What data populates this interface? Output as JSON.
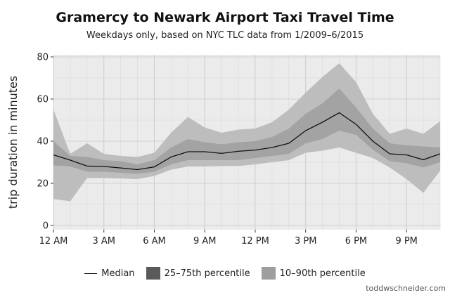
{
  "title": "Gramercy to Newark Airport Taxi Travel Time",
  "subtitle": "Weekdays only, based on NYC TLC data from 1/2009–6/2015",
  "credit": "toddwschneider.com",
  "colors": {
    "panel_bg": "#ebebeb",
    "grid": "#d9d9d9",
    "band_10_90": "#bdbdbd",
    "band_25_75": "#a3a3a3",
    "median_line": "#111111",
    "legend_25_75": "#5a5a5a",
    "legend_10_90": "#9e9e9e"
  },
  "legend": {
    "median": "Median",
    "p25_75": "25–75th percentile",
    "p10_90": "10–90th percentile"
  },
  "chart_data": {
    "type": "area",
    "title": "Gramercy to Newark Airport Taxi Travel Time",
    "subtitle": "Weekdays only, based on NYC TLC data from 1/2009–6/2015",
    "ylabel": "trip duration in minutes",
    "xlabel": "",
    "xlim": [
      0,
      23
    ],
    "ylim": [
      -2,
      81
    ],
    "x_ticks": [
      0,
      3,
      6,
      9,
      12,
      15,
      18,
      21
    ],
    "x_tick_labels": [
      "12 AM",
      "3 AM",
      "6 AM",
      "9 AM",
      "12 PM",
      "3 PM",
      "6 PM",
      "9 PM"
    ],
    "y_ticks": [
      0,
      20,
      40,
      60,
      80
    ],
    "grid": true,
    "legend_position": "bottom",
    "x": [
      0,
      1,
      2,
      3,
      4,
      5,
      6,
      7,
      8,
      9,
      10,
      11,
      12,
      13,
      14,
      15,
      16,
      17,
      18,
      19,
      20,
      21,
      22,
      23
    ],
    "series": [
      {
        "name": "Median",
        "values": [
          33.5,
          31,
          28.2,
          28,
          27.3,
          26.5,
          27.8,
          32.5,
          35,
          35,
          34.2,
          35.2,
          35.8,
          37,
          39,
          45,
          49,
          53.5,
          48,
          40,
          34,
          33.5,
          31.2,
          34
        ]
      },
      {
        "name": "25th percentile",
        "values": [
          28.5,
          28,
          25.5,
          25.5,
          25,
          24.5,
          25.5,
          29,
          31,
          31,
          31,
          31,
          32,
          33,
          34,
          39,
          41,
          45,
          43,
          36,
          30.5,
          29.5,
          27.5,
          30
        ]
      },
      {
        "name": "75th percentile",
        "values": [
          40,
          33,
          32.5,
          31,
          30.5,
          29,
          31,
          37,
          41,
          39.5,
          38.5,
          39.5,
          40,
          42,
          46,
          53,
          58,
          65,
          56,
          46,
          39,
          38,
          37.5,
          37
        ]
      },
      {
        "name": "10th percentile",
        "values": [
          12.5,
          11.5,
          22.5,
          22.5,
          22.3,
          22,
          23.5,
          26.5,
          28,
          28,
          28.2,
          28.2,
          29,
          30,
          31,
          34.5,
          35.5,
          37,
          34.5,
          32,
          27.5,
          22,
          15.5,
          26
        ]
      },
      {
        "name": "90th percentile",
        "values": [
          55,
          34,
          39,
          34,
          33,
          32.5,
          34.5,
          44,
          51.5,
          46.5,
          44,
          45.5,
          46,
          49,
          55,
          63,
          70.5,
          77,
          68,
          53,
          43.5,
          46,
          43.5,
          49.5
        ]
      }
    ]
  }
}
